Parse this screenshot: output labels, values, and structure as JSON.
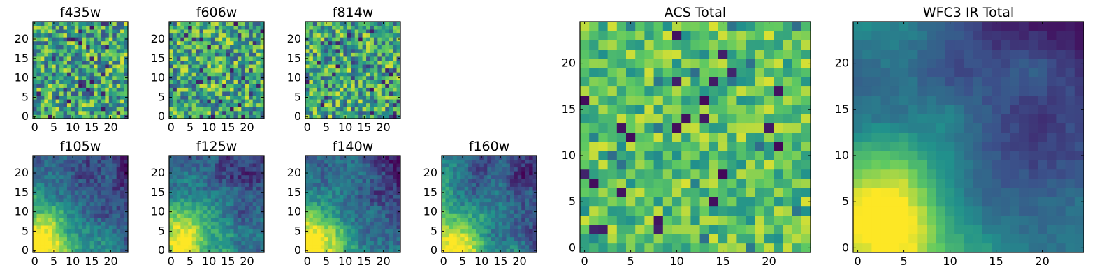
{
  "figure": {
    "colormap": "viridis",
    "colors": [
      "#440154",
      "#3b528b",
      "#21918c",
      "#5ec962",
      "#fde725"
    ]
  },
  "chart_data": [
    {
      "type": "heatmap",
      "title": "f435w",
      "kind": "noise",
      "seed": 11,
      "grid": 25,
      "xticks": [
        "0",
        "5",
        "10",
        "15",
        "20"
      ],
      "yticks": [
        "0",
        "5",
        "10",
        "15",
        "20"
      ],
      "xlim": [
        -0.5,
        24.5
      ],
      "ylim": [
        -0.5,
        24.5
      ]
    },
    {
      "type": "heatmap",
      "title": "f606w",
      "kind": "noise",
      "seed": 23,
      "grid": 25,
      "xticks": [
        "0",
        "5",
        "10",
        "15",
        "20"
      ],
      "yticks": [
        "0",
        "5",
        "10",
        "15",
        "20"
      ],
      "xlim": [
        -0.5,
        24.5
      ],
      "ylim": [
        -0.5,
        24.5
      ]
    },
    {
      "type": "heatmap",
      "title": "f814w",
      "kind": "noise",
      "seed": 37,
      "grid": 25,
      "xticks": [
        "0",
        "5",
        "10",
        "15",
        "20"
      ],
      "yticks": [
        "0",
        "5",
        "10",
        "15",
        "20"
      ],
      "xlim": [
        -0.5,
        24.5
      ],
      "ylim": [
        -0.5,
        24.5
      ]
    },
    {
      "type": "heatmap",
      "title": "f105w",
      "kind": "gradient",
      "seed": 41,
      "grid": 25,
      "xticks": [
        "0",
        "5",
        "10",
        "15",
        "20"
      ],
      "yticks": [
        "0",
        "5",
        "10",
        "15",
        "20"
      ],
      "xlim": [
        -0.5,
        24.5
      ],
      "ylim": [
        -0.5,
        24.5
      ]
    },
    {
      "type": "heatmap",
      "title": "f125w",
      "kind": "gradient",
      "seed": 53,
      "grid": 25,
      "xticks": [
        "0",
        "5",
        "10",
        "15",
        "20"
      ],
      "yticks": [
        "0",
        "5",
        "10",
        "15",
        "20"
      ],
      "xlim": [
        -0.5,
        24.5
      ],
      "ylim": [
        -0.5,
        24.5
      ]
    },
    {
      "type": "heatmap",
      "title": "f140w",
      "kind": "gradient",
      "seed": 67,
      "grid": 25,
      "xticks": [
        "0",
        "5",
        "10",
        "15",
        "20"
      ],
      "yticks": [
        "0",
        "5",
        "10",
        "15",
        "20"
      ],
      "xlim": [
        -0.5,
        24.5
      ],
      "ylim": [
        -0.5,
        24.5
      ]
    },
    {
      "type": "heatmap",
      "title": "f160w",
      "kind": "gradient",
      "seed": 79,
      "grid": 25,
      "xticks": [
        "0",
        "5",
        "10",
        "15",
        "20"
      ],
      "yticks": [
        "0",
        "5",
        "10",
        "15",
        "20"
      ],
      "xlim": [
        -0.5,
        24.5
      ],
      "ylim": [
        -0.5,
        24.5
      ]
    },
    {
      "type": "heatmap",
      "title": "ACS Total",
      "kind": "noise-total",
      "seed": 97,
      "grid": 25,
      "xticks": [
        "0",
        "5",
        "10",
        "15",
        "20"
      ],
      "yticks": [
        "0",
        "5",
        "10",
        "15",
        "20"
      ],
      "xlim": [
        -0.5,
        24.5
      ],
      "ylim": [
        -0.5,
        24.5
      ]
    },
    {
      "type": "heatmap",
      "title": "WFC3 IR Total",
      "kind": "gradient-total",
      "seed": 101,
      "grid": 25,
      "xticks": [
        "0",
        "5",
        "10",
        "15",
        "20"
      ],
      "yticks": [
        "0",
        "5",
        "10",
        "15",
        "20"
      ],
      "xlim": [
        -0.5,
        24.5
      ],
      "ylim": [
        -0.5,
        24.5
      ]
    }
  ]
}
